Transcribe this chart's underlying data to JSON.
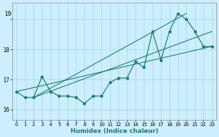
{
  "title_text": "19",
  "xlabel": "Humidex (Indice chaleur)",
  "background_color": "#cceeff",
  "grid_color": "#aadddd",
  "line_color": "#1a7a6e",
  "xlim": [
    -0.5,
    23.5
  ],
  "ylim": [
    15.65,
    19.55
  ],
  "yticks": [
    16,
    17,
    18,
    19
  ],
  "xticks": [
    0,
    1,
    2,
    3,
    4,
    5,
    6,
    7,
    8,
    9,
    10,
    11,
    12,
    13,
    14,
    15,
    16,
    17,
    18,
    19,
    20,
    21,
    22,
    23
  ],
  "curve1_x": [
    0,
    1,
    2,
    3,
    4,
    5,
    6,
    7,
    8,
    9,
    10,
    11,
    12,
    13,
    14,
    15,
    16,
    17,
    18,
    19,
    20,
    21,
    22,
    23
  ],
  "curve1_y": [
    16.6,
    16.4,
    16.4,
    17.1,
    16.6,
    16.45,
    16.45,
    16.4,
    16.2,
    16.45,
    16.45,
    16.9,
    17.05,
    17.05,
    17.6,
    17.4,
    18.6,
    17.65,
    18.6,
    19.2,
    19.0,
    18.6,
    18.1,
    18.1
  ],
  "curve2_x": [
    0,
    23
  ],
  "curve2_y": [
    16.6,
    18.1
  ],
  "curve3_x": [
    2,
    23
  ],
  "curve3_y": [
    16.4,
    18.6
  ],
  "curve4_x": [
    2,
    20
  ],
  "curve4_y": [
    16.4,
    19.2
  ]
}
